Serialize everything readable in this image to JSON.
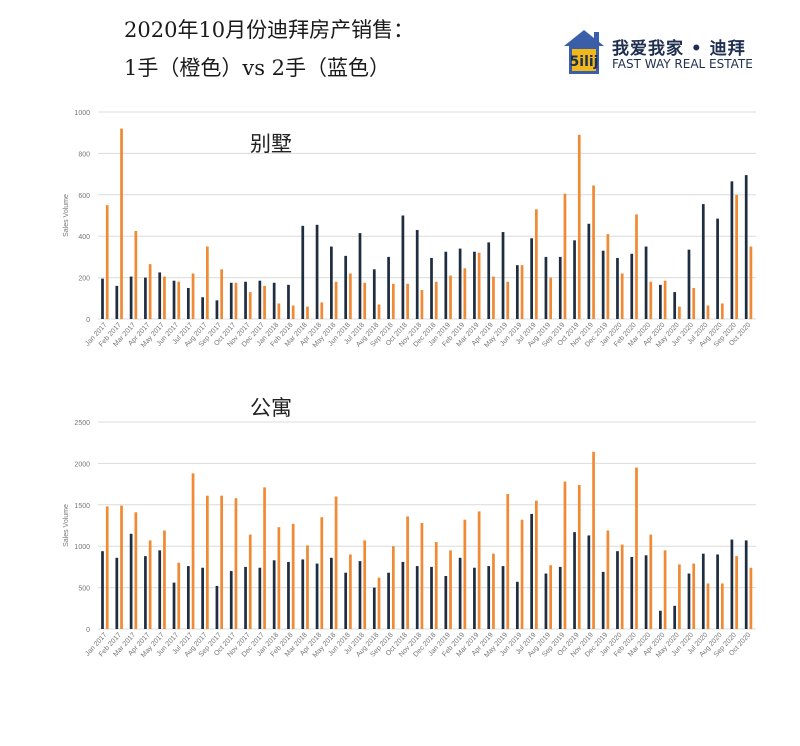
{
  "header": {
    "title_line1": "2020年10月份迪拜房产销售：",
    "title_line2": "1手（橙色）vs 2手（蓝色）"
  },
  "logo": {
    "cn": "我爱我家 • 迪拜",
    "en": "FAST WAY REAL ESTATE",
    "mark_letters": "5ilij"
  },
  "colors": {
    "blue": "#1f2d40",
    "orange": "#f08a34",
    "grid": "#dcdcdc",
    "axis_text": "#777777"
  },
  "chart_data": [
    {
      "type": "bar",
      "title": "别墅",
      "ylabel": "Sales Volume",
      "ylim": [
        0,
        1000
      ],
      "yticks": [
        0,
        200,
        400,
        600,
        800,
        1000
      ],
      "grid": true,
      "categories": [
        "Jan 2017",
        "Feb 2017",
        "Mar 2017",
        "Apr 2017",
        "May 2017",
        "Jun 2017",
        "Jul 2017",
        "Aug 2017",
        "Sep 2017",
        "Oct 2017",
        "Nov 2017",
        "Dec 2017",
        "Jan 2018",
        "Feb 2018",
        "Mar 2018",
        "Apr 2018",
        "May 2018",
        "Jun 2018",
        "Jul 2018",
        "Aug 2018",
        "Sep 2018",
        "Oct 2018",
        "Nov 2018",
        "Dec 2018",
        "Jan 2019",
        "Feb 2019",
        "Mar 2019",
        "Apr 2019",
        "May 2019",
        "Jun 2019",
        "Jul 2019",
        "Aug 2019",
        "Sep 2019",
        "Oct 2019",
        "Nov 2019",
        "Dec 2019",
        "Jan 2020",
        "Feb 2020",
        "Mar 2020",
        "Apr 2020",
        "May 2020",
        "Jun 2020",
        "Jul 2020",
        "Aug 2020",
        "Sep 2020",
        "Oct 2020"
      ],
      "series": [
        {
          "color": "#1f2d40",
          "values": [
            195,
            160,
            205,
            200,
            225,
            185,
            150,
            105,
            90,
            175,
            180,
            185,
            175,
            165,
            450,
            455,
            350,
            305,
            415,
            240,
            300,
            500,
            430,
            295,
            325,
            340,
            325,
            370,
            420,
            260,
            390,
            300,
            300,
            380,
            460,
            330,
            295,
            315,
            350,
            165,
            130,
            335,
            555,
            485,
            665,
            695
          ]
        },
        {
          "color": "#f08a34",
          "values": [
            550,
            920,
            425,
            265,
            205,
            180,
            220,
            350,
            240,
            175,
            130,
            160,
            75,
            65,
            60,
            80,
            180,
            220,
            175,
            70,
            170,
            170,
            140,
            180,
            210,
            245,
            320,
            205,
            180,
            260,
            530,
            200,
            605,
            890,
            645,
            410,
            220,
            505,
            180,
            185,
            60,
            150,
            65,
            75,
            600,
            350
          ]
        }
      ]
    },
    {
      "type": "bar",
      "title": "公寓",
      "ylabel": "Sales Volume",
      "ylim": [
        0,
        2500
      ],
      "yticks": [
        0,
        500,
        1000,
        1500,
        2000,
        2500
      ],
      "grid": true,
      "categories": [
        "Jan 2017",
        "Feb 2017",
        "Mar 2017",
        "Apr 2017",
        "May 2017",
        "Jun 2017",
        "Jul 2017",
        "Aug 2017",
        "Sep 2017",
        "Oct 2017",
        "Nov 2017",
        "Dec 2017",
        "Jan 2018",
        "Feb 2018",
        "Mar 2018",
        "Apr 2018",
        "May 2018",
        "Jun 2018",
        "Jul 2018",
        "Aug 2018",
        "Sep 2018",
        "Oct 2018",
        "Nov 2018",
        "Dec 2018",
        "Jan 2019",
        "Feb 2019",
        "Mar 2019",
        "Apr 2019",
        "May 2019",
        "Jun 2019",
        "Jul 2019",
        "Aug 2019",
        "Sep 2019",
        "Oct 2019",
        "Nov 2019",
        "Dec 2019",
        "Jan 2020",
        "Feb 2020",
        "Mar 2020",
        "Apr 2020",
        "May 2020",
        "Jun 2020",
        "Jul 2020",
        "Aug 2020",
        "Sep 2020",
        "Oct 2020"
      ],
      "series": [
        {
          "color": "#1f2d40",
          "values": [
            940,
            860,
            1150,
            880,
            950,
            560,
            760,
            740,
            520,
            700,
            750,
            740,
            830,
            810,
            840,
            790,
            860,
            680,
            820,
            500,
            680,
            810,
            760,
            750,
            640,
            860,
            740,
            760,
            760,
            570,
            1390,
            670,
            750,
            1170,
            1130,
            690,
            940,
            870,
            890,
            220,
            280,
            670,
            910,
            900,
            1080,
            1070
          ]
        },
        {
          "color": "#f08a34",
          "values": [
            1480,
            1490,
            1410,
            1070,
            1190,
            800,
            1880,
            1610,
            1610,
            1580,
            1140,
            1710,
            1230,
            1270,
            1010,
            1350,
            1600,
            900,
            1070,
            620,
            1000,
            1360,
            1280,
            1050,
            950,
            1320,
            1420,
            910,
            1630,
            1320,
            1550,
            770,
            1780,
            1740,
            2140,
            1190,
            1020,
            1950,
            1140,
            950,
            780,
            790,
            550,
            550,
            880,
            740
          ]
        }
      ]
    }
  ]
}
